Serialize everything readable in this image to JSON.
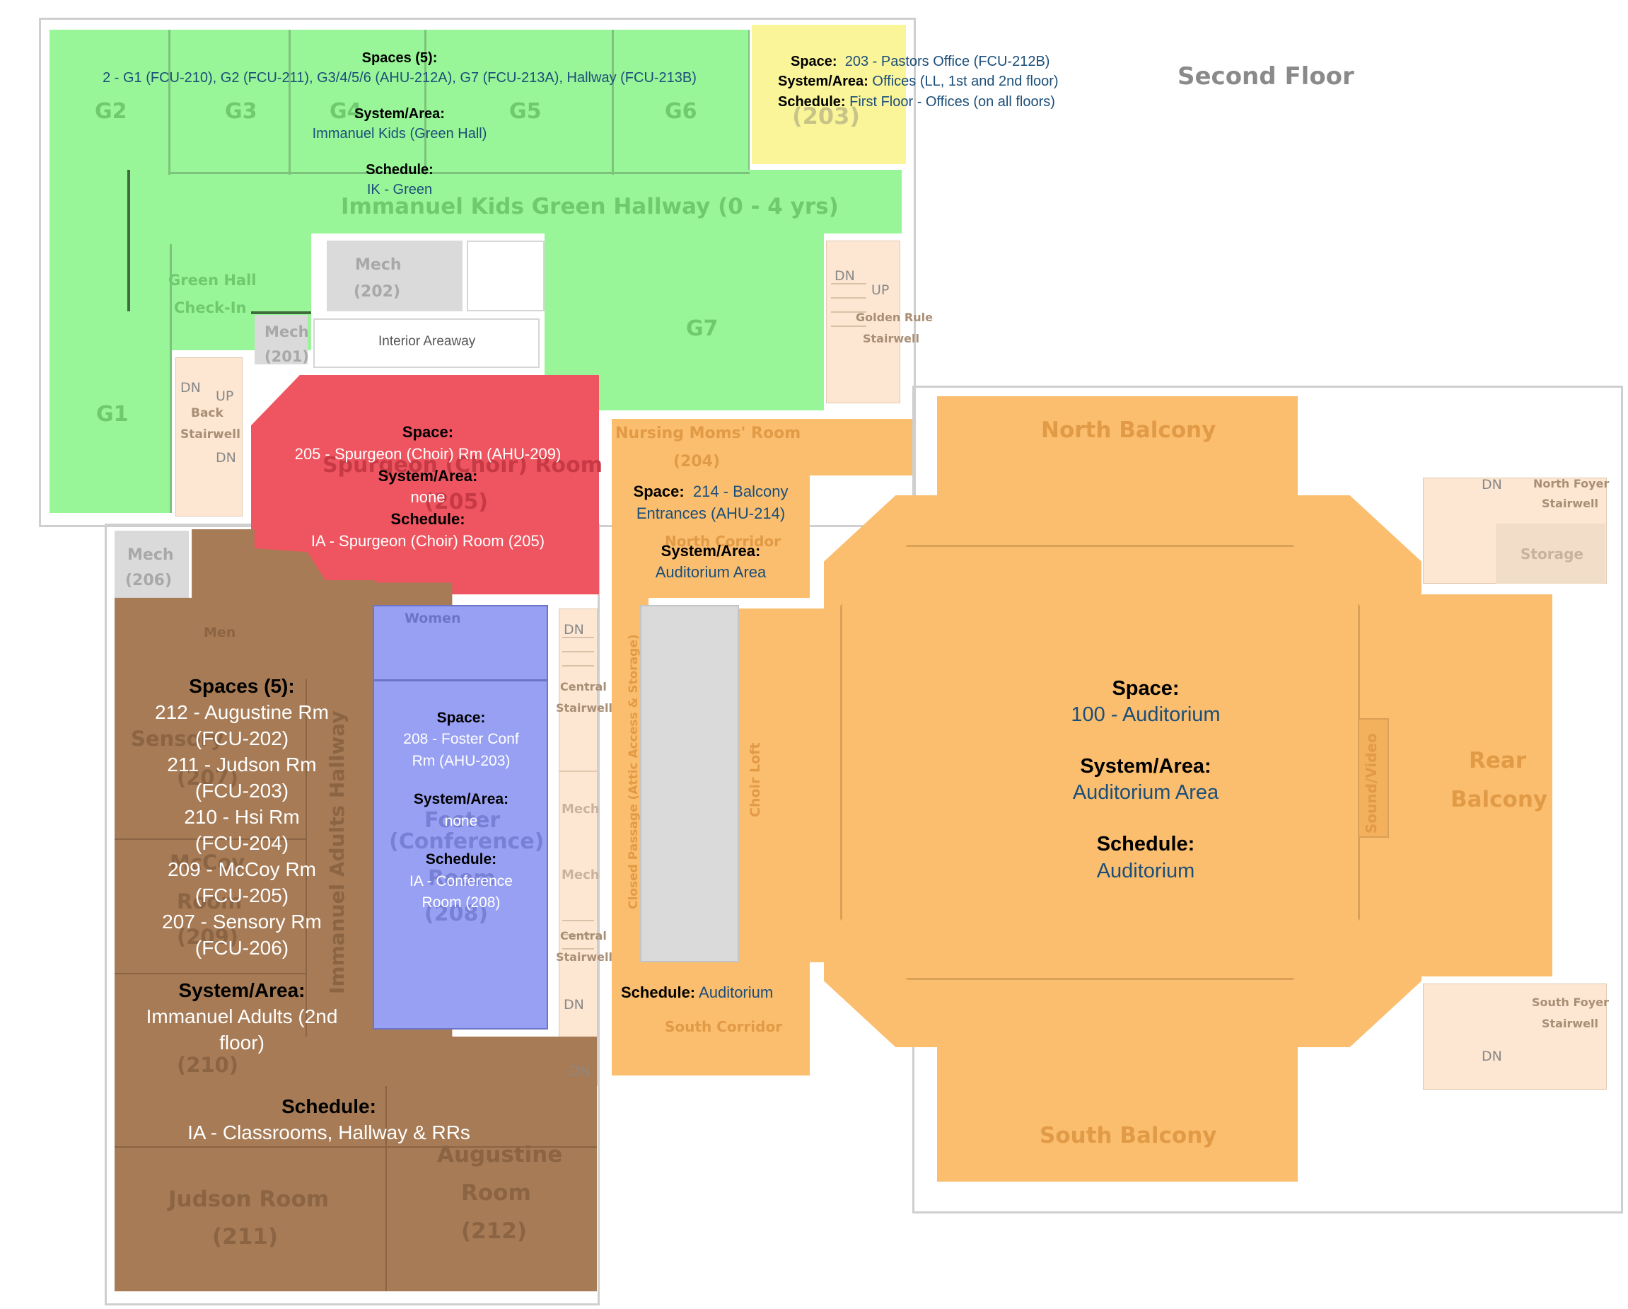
{
  "floor_title": "Second Floor",
  "colors": {
    "green_zone": "#98f598",
    "yellow_zone": "#fbf59a",
    "red_zone": "#ef5560",
    "brown_zone": "#a77b55",
    "blue_zone": "#98a0f3",
    "orange_zone": "#fbbe6e",
    "gray_room": "#dadada",
    "info_value_text": "#1b4e79"
  },
  "rooms": {
    "g1": "G1",
    "g2": "G2",
    "g3": "G3",
    "g4": "G4",
    "g5": "G5",
    "g6": "G6",
    "g7": "G7",
    "g203": "(203)",
    "green_hallway": "Immanuel Kids Green Hallway (0 - 4 yrs)",
    "green_hall_checkin_1": "Green Hall",
    "green_hall_checkin_2": "Check-In",
    "mech202_1": "Mech",
    "mech202_2": "(202)",
    "mech201_1": "Mech",
    "mech201_2": "(201)",
    "mech206_1": "Mech",
    "mech206_2": "(206)",
    "interior_areaway": "Interior Areaway",
    "back_stairwell_1": "Back",
    "back_stairwell_2": "Stairwell",
    "golden_rule_1": "Golden Rule",
    "golden_rule_2": "Stairwell",
    "dn": "DN",
    "up": "UP",
    "spurgeon_bg_1": "Spurgeon (Choir) Room",
    "spurgeon_bg_2": "(205)",
    "nursing_1": "Nursing Moms' Room",
    "nursing_2": "(204)",
    "north_corridor": "North Corridor",
    "south_corridor": "South Corridor",
    "women": "Women",
    "men": "Men",
    "central_stairwell_1": "Central",
    "central_stairwell_2": "Stairwell",
    "mech": "Mech",
    "foster_bg_1": "Foster",
    "foster_bg_2": "(Conference)",
    "foster_bg_3": "Room",
    "foster_bg_4": "(208)",
    "closed_passage": "Closed Passage (Attic Access & Storage)",
    "choir_loft": "Choir Loft",
    "sound_video": "Sound/Video",
    "north_balcony": "North Balcony",
    "south_balcony": "South Balcony",
    "rear_balcony_1": "Rear",
    "rear_balcony_2": "Balcony",
    "north_foyer_1": "North Foyer",
    "north_foyer_2": "Stairwell",
    "south_foyer_1": "South Foyer",
    "south_foyer_2": "Stairwell",
    "storage": "Storage",
    "immanuel_adults_hallway": "Immanuel Adults Hallway",
    "sensory_1": "Sensory",
    "sensory_2": "(207)",
    "mccoy_1": "McCoy",
    "mccoy_2": "Room",
    "mccoy_3": "(209)",
    "hsi_2": "(210)",
    "judson_1": "Judson Room",
    "judson_2": "(211)",
    "augustine_1": "Augustine",
    "augustine_2": "Room",
    "augustine_3": "(212)"
  },
  "info": {
    "green": {
      "spaces_label": "Spaces (5):",
      "spaces_value": "2 - G1 (FCU-210), G2 (FCU-211), G3/4/5/6 (AHU-212A), G7 (FCU-213A), Hallway (FCU-213B)",
      "system_label": "System/Area:",
      "system_value": "Immanuel Kids (Green Hall)",
      "schedule_label": "Schedule:",
      "schedule_value": "IK - Green"
    },
    "yellow": {
      "space_label": "Space:",
      "space_value": "203 - Pastors Office (FCU-212B)",
      "system_label": "System/Area:",
      "system_value": "Offices (LL, 1st and 2nd floor)",
      "schedule_label": "Schedule:",
      "schedule_value": "First Floor - Offices (on all floors)"
    },
    "red": {
      "space_label": "Space:",
      "space_value": "205 - Spurgeon (Choir) Rm (AHU-209)",
      "system_label": "System/Area:",
      "system_value": "none",
      "schedule_label": "Schedule:",
      "schedule_value": "IA - Spurgeon (Choir) Room (205)"
    },
    "balcony_entrances": {
      "space_label": "Space:",
      "space_value_1": "214 - Balcony",
      "space_value_2": "Entrances (AHU-214)",
      "system_label": "System/Area:",
      "system_value": "Auditorium Area",
      "schedule_label": "Schedule:",
      "schedule_value": "Auditorium"
    },
    "blue": {
      "space_label": "Space:",
      "space_value_1": "208 - Foster Conf",
      "space_value_2": "Rm (AHU-203)",
      "system_label": "System/Area:",
      "system_value": "none",
      "schedule_label": "Schedule:",
      "schedule_value_1": "IA - Conference",
      "schedule_value_2": "Room (208)"
    },
    "brown": {
      "spaces_label": "Spaces (5):",
      "spaces": [
        "212 - Augustine Rm",
        "(FCU-202)",
        "211 - Judson Rm",
        "(FCU-203)",
        "210 - Hsi Rm",
        "(FCU-204)",
        "209 - McCoy Rm",
        "(FCU-205)",
        "207 - Sensory Rm",
        "(FCU-206)"
      ],
      "system_label": "System/Area:",
      "system_value_1": "Immanuel Adults (2nd",
      "system_value_2": "floor)",
      "schedule_label": "Schedule:",
      "schedule_value": "IA - Classrooms, Hallway & RRs"
    },
    "auditorium": {
      "space_label": "Space:",
      "space_value": "100 - Auditorium",
      "system_label": "System/Area:",
      "system_value": "Auditorium Area",
      "schedule_label": "Schedule:",
      "schedule_value": "Auditorium"
    }
  }
}
